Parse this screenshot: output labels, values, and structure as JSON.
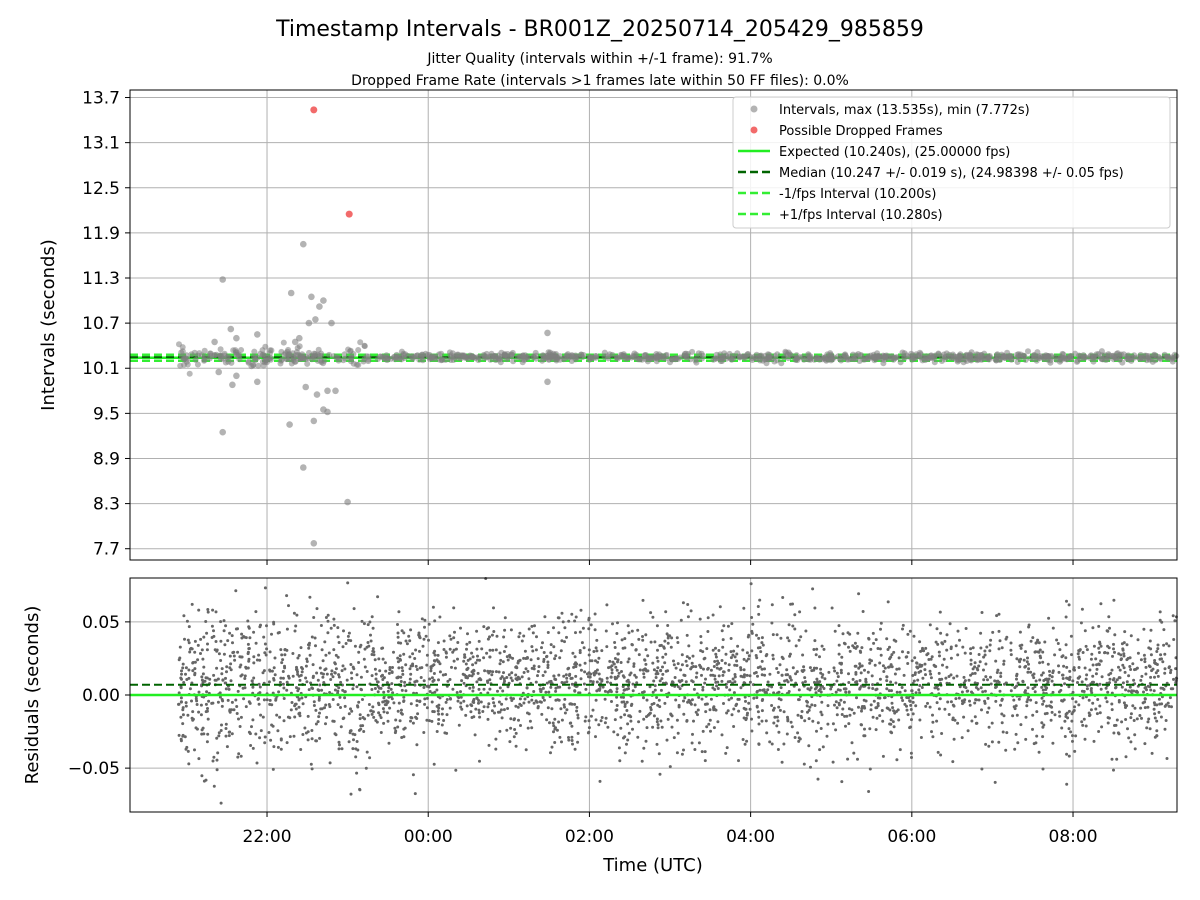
{
  "chart_data": [
    {
      "type": "scatter",
      "title": "Timestamp Intervals - BR001Z_20250714_205429_985859",
      "subtitle_lines": [
        "Jitter Quality (intervals within +/-1 frame): 91.7%",
        "Dropped Frame Rate (intervals >1 frames late within 50 FF files): 0.0%"
      ],
      "ylabel": "Intervals (seconds)",
      "ylim": [
        7.55,
        13.8
      ],
      "yticks": [
        "7.7",
        "8.3",
        "8.9",
        "9.5",
        "10.1",
        "10.7",
        "11.3",
        "11.9",
        "12.5",
        "13.1",
        "13.7"
      ],
      "x_range_hours": [
        20.3,
        33.29
      ],
      "grid": true,
      "legend_position": "upper right",
      "legend": [
        "Intervals, max (13.535s), min (7.772s)",
        "Possible Dropped Frames",
        "Expected (10.240s), (25.00000 fps)",
        "Median (10.247 +/- 0.019 s), (24.98398 +/- 0.05 fps)",
        "-1/fps Interval (10.200s)",
        "+1/fps Interval (10.280s)"
      ],
      "expected": 10.24,
      "median": 10.247,
      "minus_interval": 10.2,
      "plus_interval": 10.28,
      "dropped_frames": [
        {
          "x": 22.58,
          "y": 13.535
        },
        {
          "x": 23.02,
          "y": 12.15
        }
      ],
      "intervals_outliers": [
        {
          "x": 21.45,
          "y": 11.28
        },
        {
          "x": 21.45,
          "y": 9.25
        },
        {
          "x": 21.55,
          "y": 10.62
        },
        {
          "x": 21.57,
          "y": 9.88
        },
        {
          "x": 21.62,
          "y": 10.5
        },
        {
          "x": 21.62,
          "y": 10.0
        },
        {
          "x": 21.88,
          "y": 10.55
        },
        {
          "x": 21.88,
          "y": 9.92
        },
        {
          "x": 22.3,
          "y": 11.1
        },
        {
          "x": 22.28,
          "y": 9.35
        },
        {
          "x": 22.45,
          "y": 11.75
        },
        {
          "x": 22.45,
          "y": 8.78
        },
        {
          "x": 22.55,
          "y": 11.05
        },
        {
          "x": 22.58,
          "y": 7.772
        },
        {
          "x": 22.52,
          "y": 10.7
        },
        {
          "x": 22.6,
          "y": 10.75
        },
        {
          "x": 22.65,
          "y": 10.92
        },
        {
          "x": 22.7,
          "y": 11.0
        },
        {
          "x": 22.62,
          "y": 9.75
        },
        {
          "x": 22.7,
          "y": 9.55
        },
        {
          "x": 22.75,
          "y": 9.52
        },
        {
          "x": 22.58,
          "y": 9.4
        },
        {
          "x": 23.0,
          "y": 8.32
        },
        {
          "x": 22.8,
          "y": 10.7
        },
        {
          "x": 22.75,
          "y": 9.8
        },
        {
          "x": 22.48,
          "y": 9.85
        },
        {
          "x": 22.35,
          "y": 10.45
        },
        {
          "x": 22.4,
          "y": 10.5
        },
        {
          "x": 25.48,
          "y": 10.57
        },
        {
          "x": 25.48,
          "y": 9.92
        },
        {
          "x": 21.35,
          "y": 10.45
        },
        {
          "x": 21.4,
          "y": 10.05
        },
        {
          "x": 22.85,
          "y": 9.8
        }
      ],
      "intervals_band": {
        "x_start": 20.9,
        "x_end": 33.29,
        "center": 10.247,
        "spread": 0.035
      }
    },
    {
      "type": "scatter",
      "xlabel": "Time (UTC)",
      "ylabel": "Residuals (seconds)",
      "ylim": [
        -0.08,
        0.08
      ],
      "yticks": [
        "−0.05",
        "0.00",
        "0.05"
      ],
      "xticks": [
        "22:00",
        "00:00",
        "02:00",
        "04:00",
        "06:00",
        "08:00"
      ],
      "x_range_hours": [
        20.3,
        33.29
      ],
      "grid": true,
      "zero_line": 0.0,
      "median_line": 0.007,
      "residual_band": {
        "x_start": 20.9,
        "x_end": 33.29,
        "center": 0.007,
        "std": 0.022,
        "clip": 0.08
      }
    }
  ],
  "colors": {
    "interval_points": "#808080",
    "dropped": "#f05050",
    "expected": "#22ee22",
    "median": "#006400",
    "fps_interval": "#33ee33",
    "residual_points": "#666666",
    "grid": "#b0b0b0"
  }
}
